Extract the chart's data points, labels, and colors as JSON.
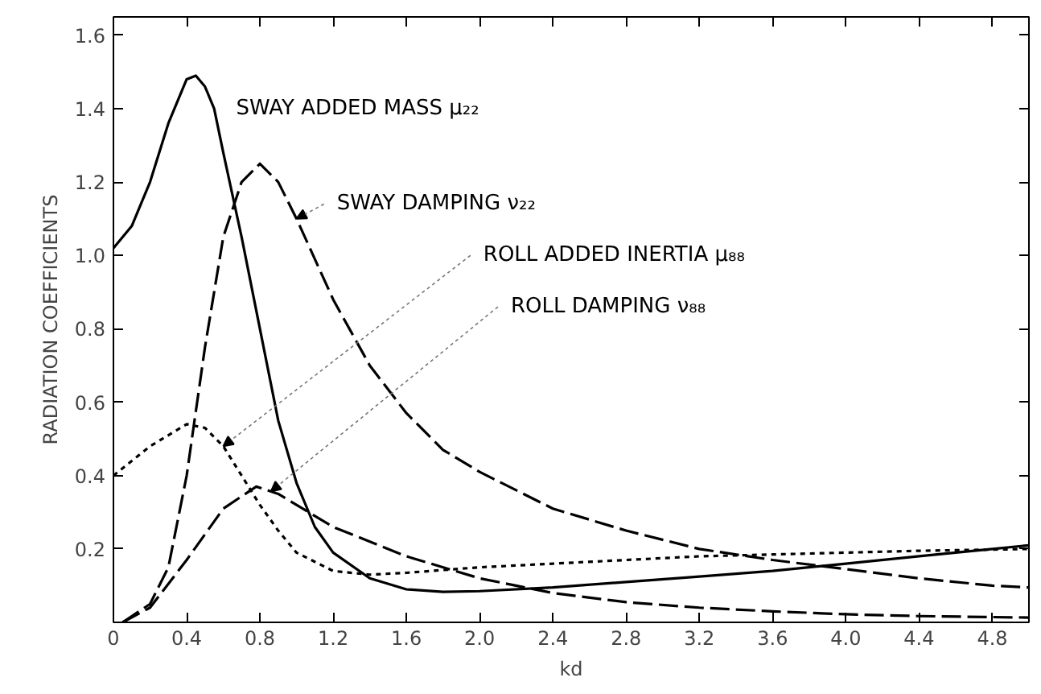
{
  "chart_data": {
    "type": "line",
    "ylabel": "RADIATION COEFFICIENTS",
    "xlabel": "kd",
    "xlim": [
      0,
      5.0
    ],
    "ylim": [
      0,
      1.65
    ],
    "xticks": [
      0,
      0.4,
      0.8,
      1.2,
      1.6,
      {
        "value": 2,
        "label": "2.0"
      },
      2.4,
      2.8,
      3.2,
      3.6,
      {
        "value": 4,
        "label": "4.0"
      },
      4.4,
      4.8
    ],
    "yticks": [
      {
        "value": 0,
        "label": null
      },
      0.2,
      0.4,
      0.6,
      0.8,
      {
        "value": 1,
        "label": "1.0"
      },
      1.2,
      1.4,
      1.6
    ],
    "grid": false,
    "marker": "none",
    "series": [
      {
        "name": "SWAY ADDED MASS μ₂₂",
        "color": "#000000",
        "line_style": "solid",
        "x": [
          0,
          0.1,
          0.2,
          0.3,
          0.4,
          0.45,
          0.5,
          0.55,
          0.6,
          0.7,
          0.8,
          0.9,
          1.0,
          1.1,
          1.2,
          1.4,
          1.6,
          1.8,
          2.0,
          2.4,
          2.8,
          3.2,
          3.6,
          4.0,
          4.4,
          4.8,
          5.0
        ],
        "values": [
          1.02,
          1.08,
          1.2,
          1.36,
          1.48,
          1.49,
          1.46,
          1.4,
          1.28,
          1.05,
          0.8,
          0.55,
          0.38,
          0.26,
          0.19,
          0.12,
          0.09,
          0.083,
          0.085,
          0.095,
          0.11,
          0.125,
          0.14,
          0.16,
          0.18,
          0.2,
          0.21
        ]
      },
      {
        "name": "SWAY DAMPING ν₂₂",
        "color": "#000000",
        "line_style": "dashed",
        "x": [
          0.05,
          0.2,
          0.3,
          0.4,
          0.5,
          0.6,
          0.7,
          0.8,
          0.9,
          1.0,
          1.2,
          1.4,
          1.6,
          1.8,
          2.0,
          2.4,
          2.8,
          3.2,
          3.6,
          4.0,
          4.4,
          4.8,
          5.0
        ],
        "values": [
          0,
          0.05,
          0.15,
          0.4,
          0.75,
          1.05,
          1.2,
          1.25,
          1.2,
          1.1,
          0.88,
          0.7,
          0.57,
          0.47,
          0.41,
          0.31,
          0.25,
          0.2,
          0.17,
          0.145,
          0.12,
          0.1,
          0.095
        ]
      },
      {
        "name": "ROLL ADDED INERTIA μ₈₈",
        "color": "#000000",
        "line_style": "dotted",
        "x": [
          0,
          0.2,
          0.4,
          0.5,
          0.6,
          0.7,
          0.8,
          0.9,
          1.0,
          1.2,
          1.4,
          1.6,
          2.0,
          2.4,
          2.8,
          3.2,
          3.6,
          4.0,
          4.4,
          5.0
        ],
        "values": [
          0.4,
          0.48,
          0.54,
          0.53,
          0.48,
          0.4,
          0.32,
          0.25,
          0.19,
          0.14,
          0.13,
          0.135,
          0.15,
          0.16,
          0.17,
          0.18,
          0.185,
          0.19,
          0.195,
          0.2
        ]
      },
      {
        "name": "ROLL DAMPING ν₈₈",
        "color": "#000000",
        "line_style": "dashed",
        "x": [
          0.05,
          0.2,
          0.4,
          0.6,
          0.78,
          0.9,
          1.0,
          1.2,
          1.6,
          2.0,
          2.4,
          2.8,
          3.2,
          3.6,
          4.0,
          4.4,
          5.0
        ],
        "values": [
          0,
          0.04,
          0.17,
          0.31,
          0.37,
          0.35,
          0.32,
          0.26,
          0.18,
          0.12,
          0.08,
          0.055,
          0.04,
          0.03,
          0.022,
          0.017,
          0.013
        ]
      }
    ]
  }
}
